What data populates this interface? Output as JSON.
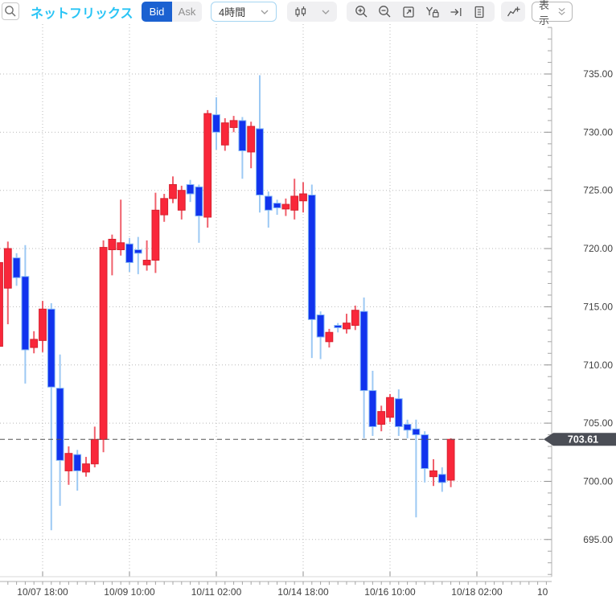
{
  "toolbar": {
    "search_icon": "magnifier",
    "symbol": "ネットフリックス",
    "symbol_color": "#29c4f5",
    "side_toggle": {
      "bid_label": "Bid",
      "ask_label": "Ask",
      "selected": "Bid",
      "selected_bg": "#1b61d1"
    },
    "timeframe": {
      "value": "4時間"
    },
    "chart_type_icon": "candlestick",
    "icons": [
      "zoom-in",
      "zoom-out",
      "fit-chart",
      "y-axis-lock",
      "go-to-latest",
      "news-document"
    ],
    "indicator_icon": "add-indicator",
    "display_button": "表示"
  },
  "chart_data": {
    "type": "candlestick",
    "symbol": "ネットフリックス",
    "timeframe": "4時間",
    "up_color": "#f9273a",
    "up_border": "#d7212f",
    "up_wick": "#f0606c",
    "down_color": "#1133ee",
    "down_border": "#82b6f5",
    "down_wick": "#9cc9f4",
    "grid_color": "#b9b9b9",
    "axis_text_color": "#3f3f3f",
    "current_price": "703.61",
    "current_price_line_color": "#555555",
    "current_price_tag_bg": "#4b4e56",
    "price_axis": {
      "levels": [
        735,
        730,
        725,
        720,
        715,
        710,
        705,
        700,
        695
      ],
      "minor_step": 1,
      "visible_range": [
        691,
        739.5
      ],
      "label_format": "x.00"
    },
    "time_axis": {
      "candles_per_label": 10,
      "labels": [
        {
          "slot": 5,
          "text": "10/07 18:00"
        },
        {
          "slot": 15,
          "text": "10/09 10:00"
        },
        {
          "slot": 25,
          "text": "10/11 02:00"
        },
        {
          "slot": 35,
          "text": "10/14 18:00"
        },
        {
          "slot": 45,
          "text": "10/16 10:00"
        },
        {
          "slot": 55,
          "text": "10/18 02:00"
        },
        {
          "slot": 65,
          "text": "10",
          "partial": true
        }
      ]
    },
    "candles": {
      "columns": [
        "open",
        "high",
        "low",
        "close"
      ],
      "up_is_red": true,
      "ohlc": [
        [
          711.6,
          719.2,
          708.4,
          718.8
        ],
        [
          716.6,
          720.6,
          713.5,
          720.0
        ],
        [
          719.2,
          719.6,
          716.8,
          717.5
        ],
        [
          717.6,
          720.3,
          708.4,
          711.3
        ],
        [
          711.5,
          712.9,
          711.0,
          712.2
        ],
        [
          712.1,
          715.5,
          711.1,
          714.8
        ],
        [
          714.8,
          715.3,
          695.8,
          708.1
        ],
        [
          708.0,
          710.9,
          697.9,
          701.8
        ],
        [
          700.9,
          703.0,
          699.7,
          702.4
        ],
        [
          702.3,
          702.7,
          699.2,
          700.9
        ],
        [
          700.8,
          702.1,
          700.4,
          701.5
        ],
        [
          701.5,
          704.7,
          701.2,
          703.6
        ],
        [
          703.6,
          720.7,
          702.5,
          720.1
        ],
        [
          719.9,
          721.2,
          717.7,
          720.8
        ],
        [
          719.9,
          724.2,
          719.4,
          720.5
        ],
        [
          720.4,
          720.9,
          718.0,
          718.8
        ],
        [
          719.9,
          721.0,
          717.8,
          719.6
        ],
        [
          718.6,
          720.7,
          718.1,
          719.0
        ],
        [
          719.0,
          724.8,
          717.9,
          723.3
        ],
        [
          722.9,
          724.7,
          722.3,
          724.3
        ],
        [
          724.3,
          726.2,
          723.9,
          725.5
        ],
        [
          723.3,
          725.4,
          722.5,
          725.0
        ],
        [
          725.5,
          725.9,
          724.0,
          724.7
        ],
        [
          725.3,
          725.5,
          720.5,
          722.8
        ],
        [
          722.7,
          731.9,
          721.8,
          731.6
        ],
        [
          731.5,
          733.0,
          728.5,
          730.0
        ],
        [
          728.9,
          731.2,
          728.4,
          730.8
        ],
        [
          730.4,
          731.4,
          730.0,
          731.0
        ],
        [
          731.0,
          731.3,
          726.0,
          728.4
        ],
        [
          728.3,
          730.9,
          726.9,
          730.5
        ],
        [
          730.3,
          734.9,
          723.1,
          724.6
        ],
        [
          724.5,
          724.9,
          721.8,
          723.3
        ],
        [
          723.9,
          724.2,
          722.9,
          723.5
        ],
        [
          723.4,
          724.3,
          722.8,
          723.8
        ],
        [
          723.3,
          726.0,
          722.5,
          724.5
        ],
        [
          724.1,
          725.7,
          723.1,
          724.7
        ],
        [
          724.6,
          725.5,
          710.6,
          713.9
        ],
        [
          714.3,
          714.6,
          710.5,
          712.4
        ],
        [
          712.0,
          713.1,
          711.5,
          712.8
        ],
        [
          713.4,
          713.6,
          712.8,
          713.2
        ],
        [
          713.1,
          714.4,
          712.7,
          713.6
        ],
        [
          713.4,
          715.1,
          713.0,
          714.7
        ],
        [
          714.6,
          715.8,
          703.7,
          707.8
        ],
        [
          707.8,
          709.5,
          703.9,
          704.7
        ],
        [
          704.9,
          706.5,
          704.3,
          706.0
        ],
        [
          705.5,
          707.5,
          705.1,
          707.2
        ],
        [
          707.1,
          707.9,
          703.9,
          704.7
        ],
        [
          704.9,
          705.3,
          703.7,
          704.4
        ],
        [
          704.5,
          705.3,
          696.9,
          704.0
        ],
        [
          704.0,
          704.3,
          699.9,
          701.1
        ],
        [
          700.4,
          701.9,
          699.6,
          700.9
        ],
        [
          700.6,
          701.2,
          699.1,
          699.9
        ],
        [
          700.1,
          703.7,
          699.5,
          703.61
        ]
      ]
    }
  }
}
